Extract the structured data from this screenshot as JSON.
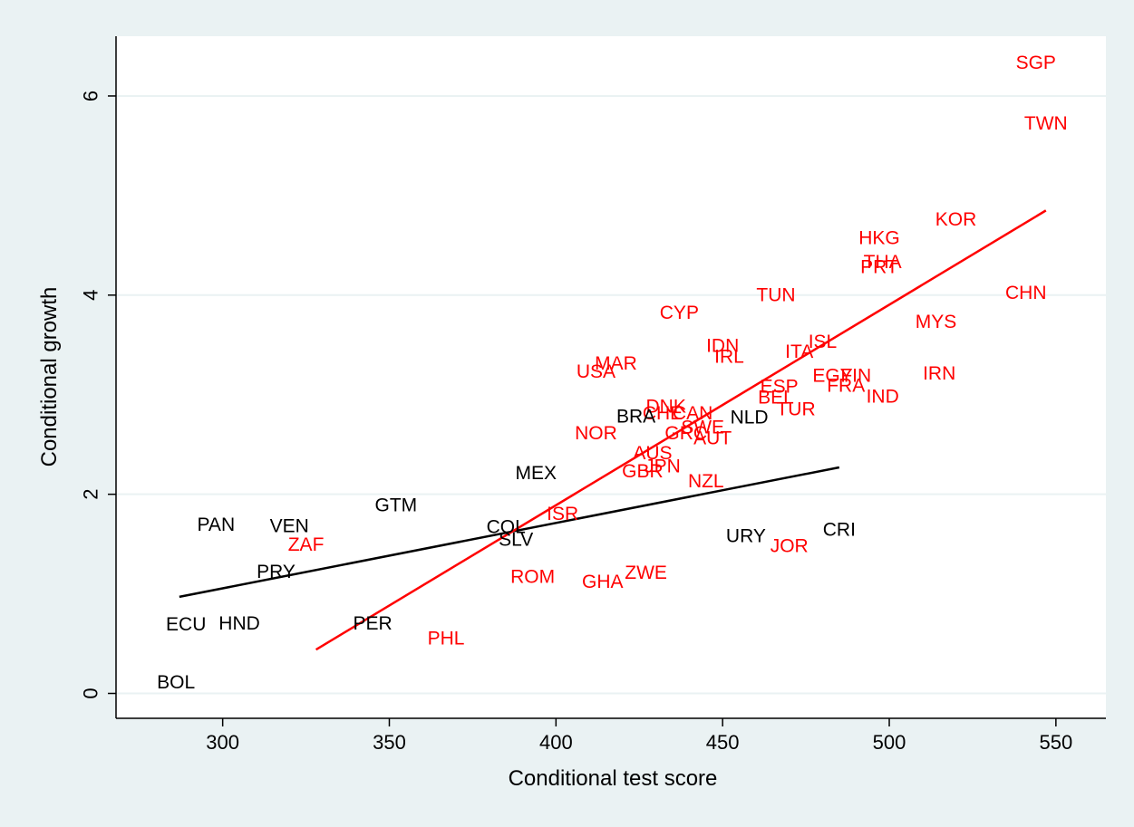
{
  "chart_data": {
    "type": "scatter",
    "xlabel": "Conditional test score",
    "ylabel": "Conditional growth",
    "xlim": [
      268,
      565
    ],
    "ylim": [
      -0.25,
      6.6
    ],
    "x_ticks": [
      300,
      350,
      400,
      450,
      500,
      550
    ],
    "y_ticks": [
      0,
      2,
      4,
      6
    ],
    "grid": "horizontal",
    "colors": {
      "background": "#eaf2f3",
      "plot_area": "#ffffff",
      "grid": "#eaf2f3",
      "group_a": "#000000",
      "group_b": "#ff0000"
    },
    "points": [
      {
        "label": "SGP",
        "x": 544,
        "y": 6.33,
        "group": "b"
      },
      {
        "label": "TWN",
        "x": 547,
        "y": 5.72,
        "group": "b"
      },
      {
        "label": "KOR",
        "x": 520,
        "y": 4.76,
        "group": "b"
      },
      {
        "label": "HKG",
        "x": 497,
        "y": 4.57,
        "group": "b"
      },
      {
        "label": "THA",
        "x": 498,
        "y": 4.33,
        "group": "b"
      },
      {
        "label": "PRT",
        "x": 497,
        "y": 4.28,
        "group": "b"
      },
      {
        "label": "CHN",
        "x": 541,
        "y": 4.02,
        "group": "b"
      },
      {
        "label": "TUN",
        "x": 466,
        "y": 4.0,
        "group": "b"
      },
      {
        "label": "MYS",
        "x": 514,
        "y": 3.73,
        "group": "b"
      },
      {
        "label": "CYP",
        "x": 437,
        "y": 3.82,
        "group": "b"
      },
      {
        "label": "ISL",
        "x": 480,
        "y": 3.53,
        "group": "b"
      },
      {
        "label": "IDN",
        "x": 450,
        "y": 3.49,
        "group": "b"
      },
      {
        "label": "ITA",
        "x": 473,
        "y": 3.43,
        "group": "b"
      },
      {
        "label": "IRL",
        "x": 452,
        "y": 3.38,
        "group": "b"
      },
      {
        "label": "MAR",
        "x": 418,
        "y": 3.31,
        "group": "b"
      },
      {
        "label": "USA",
        "x": 412,
        "y": 3.23,
        "group": "b"
      },
      {
        "label": "IRN",
        "x": 515,
        "y": 3.21,
        "group": "b"
      },
      {
        "label": "EGY",
        "x": 483,
        "y": 3.19,
        "group": "b"
      },
      {
        "label": "FIN",
        "x": 490,
        "y": 3.19,
        "group": "b"
      },
      {
        "label": "FRA",
        "x": 487,
        "y": 3.09,
        "group": "b"
      },
      {
        "label": "ESP",
        "x": 467,
        "y": 3.08,
        "group": "b"
      },
      {
        "label": "IND",
        "x": 498,
        "y": 2.98,
        "group": "b"
      },
      {
        "label": "BEL",
        "x": 466,
        "y": 2.97,
        "group": "b"
      },
      {
        "label": "TUR",
        "x": 472,
        "y": 2.85,
        "group": "b"
      },
      {
        "label": "DNK",
        "x": 433,
        "y": 2.88,
        "group": "b"
      },
      {
        "label": "CHE",
        "x": 432,
        "y": 2.81,
        "group": "b"
      },
      {
        "label": "CAN",
        "x": 441,
        "y": 2.81,
        "group": "b"
      },
      {
        "label": "NLD",
        "x": 458,
        "y": 2.77,
        "group": "a"
      },
      {
        "label": "BRA",
        "x": 424,
        "y": 2.78,
        "group": "a"
      },
      {
        "label": "SWE",
        "x": 444,
        "y": 2.67,
        "group": "b"
      },
      {
        "label": "GRC",
        "x": 439,
        "y": 2.61,
        "group": "b"
      },
      {
        "label": "AUT",
        "x": 447,
        "y": 2.56,
        "group": "b"
      },
      {
        "label": "NOR",
        "x": 412,
        "y": 2.61,
        "group": "b"
      },
      {
        "label": "AUS",
        "x": 429,
        "y": 2.41,
        "group": "b"
      },
      {
        "label": "JPN",
        "x": 432,
        "y": 2.28,
        "group": "b"
      },
      {
        "label": "GBR",
        "x": 426,
        "y": 2.23,
        "group": "b"
      },
      {
        "label": "NZL",
        "x": 445,
        "y": 2.13,
        "group": "b"
      },
      {
        "label": "MEX",
        "x": 394,
        "y": 2.21,
        "group": "a"
      },
      {
        "label": "GTM",
        "x": 352,
        "y": 1.89,
        "group": "a"
      },
      {
        "label": "ISR",
        "x": 402,
        "y": 1.8,
        "group": "b"
      },
      {
        "label": "PAN",
        "x": 298,
        "y": 1.69,
        "group": "a"
      },
      {
        "label": "VEN",
        "x": 320,
        "y": 1.68,
        "group": "a"
      },
      {
        "label": "COL",
        "x": 385,
        "y": 1.67,
        "group": "a"
      },
      {
        "label": "CRI",
        "x": 485,
        "y": 1.64,
        "group": "a"
      },
      {
        "label": "SLV",
        "x": 388,
        "y": 1.54,
        "group": "a"
      },
      {
        "label": "URY",
        "x": 457,
        "y": 1.58,
        "group": "a"
      },
      {
        "label": "JOR",
        "x": 470,
        "y": 1.48,
        "group": "b"
      },
      {
        "label": "ZAF",
        "x": 325,
        "y": 1.49,
        "group": "b"
      },
      {
        "label": "ROM",
        "x": 393,
        "y": 1.17,
        "group": "b"
      },
      {
        "label": "ZWE",
        "x": 427,
        "y": 1.21,
        "group": "b"
      },
      {
        "label": "GHA",
        "x": 414,
        "y": 1.12,
        "group": "b"
      },
      {
        "label": "PRY",
        "x": 316,
        "y": 1.22,
        "group": "a"
      },
      {
        "label": "ECU",
        "x": 289,
        "y": 0.69,
        "group": "a"
      },
      {
        "label": "HND",
        "x": 305,
        "y": 0.7,
        "group": "a"
      },
      {
        "label": "PER",
        "x": 345,
        "y": 0.7,
        "group": "a"
      },
      {
        "label": "PHL",
        "x": 367,
        "y": 0.55,
        "group": "b"
      },
      {
        "label": "BOL",
        "x": 286,
        "y": 0.11,
        "group": "a"
      }
    ],
    "fit_lines": [
      {
        "group": "a",
        "x": [
          287,
          485
        ],
        "y": [
          0.97,
          2.27
        ]
      },
      {
        "group": "b",
        "x": [
          328,
          547
        ],
        "y": [
          0.44,
          4.85
        ]
      }
    ]
  }
}
